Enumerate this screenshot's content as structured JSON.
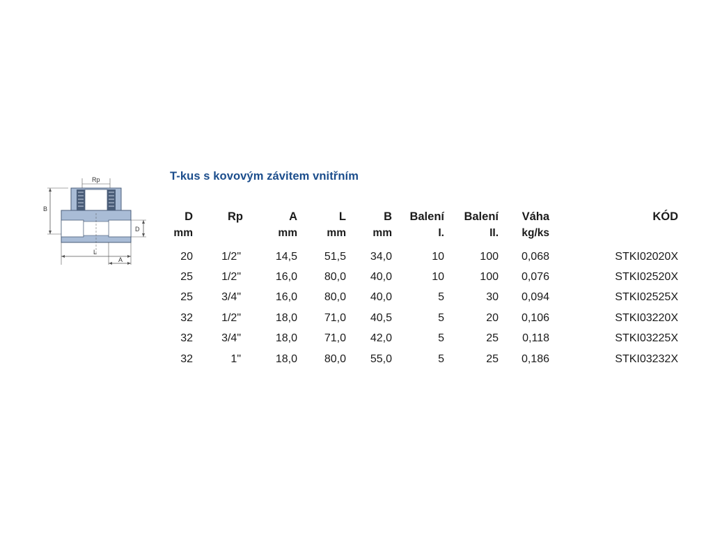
{
  "drawing": {
    "label_rp": "Rp",
    "label_b": "B",
    "label_d": "D",
    "label_l": "L",
    "label_a": "A"
  },
  "title": "T-kus s kovovým závitem vnitřním",
  "table": {
    "headers": [
      "D",
      "Rp",
      "A",
      "L",
      "B",
      "Balení",
      "Balení",
      "Váha",
      "KÓD"
    ],
    "subheaders": [
      "mm",
      "",
      "mm",
      "mm",
      "mm",
      "I.",
      "II.",
      "kg/ks",
      ""
    ],
    "rows": [
      [
        "20",
        "1/2\"",
        "14,5",
        "51,5",
        "34,0",
        "10",
        "100",
        "0,068",
        "STKI02020X"
      ],
      [
        "25",
        "1/2\"",
        "16,0",
        "80,0",
        "40,0",
        "10",
        "100",
        "0,076",
        "STKI02520X"
      ],
      [
        "25",
        "3/4\"",
        "16,0",
        "80,0",
        "40,0",
        "5",
        "30",
        "0,094",
        "STKI02525X"
      ],
      [
        "32",
        "1/2\"",
        "18,0",
        "71,0",
        "40,5",
        "5",
        "20",
        "0,106",
        "STKI03220X"
      ],
      [
        "32",
        "3/4\"",
        "18,0",
        "71,0",
        "42,0",
        "5",
        "25",
        "0,118",
        "STKI03225X"
      ],
      [
        "32",
        "1\"",
        "18,0",
        "80,0",
        "55,0",
        "5",
        "25",
        "0,186",
        "STKI03232X"
      ]
    ]
  },
  "colors": {
    "title": "#1b4d8c",
    "fitting_body": "#a9bcd6",
    "fitting_dark": "#4a5d78"
  }
}
